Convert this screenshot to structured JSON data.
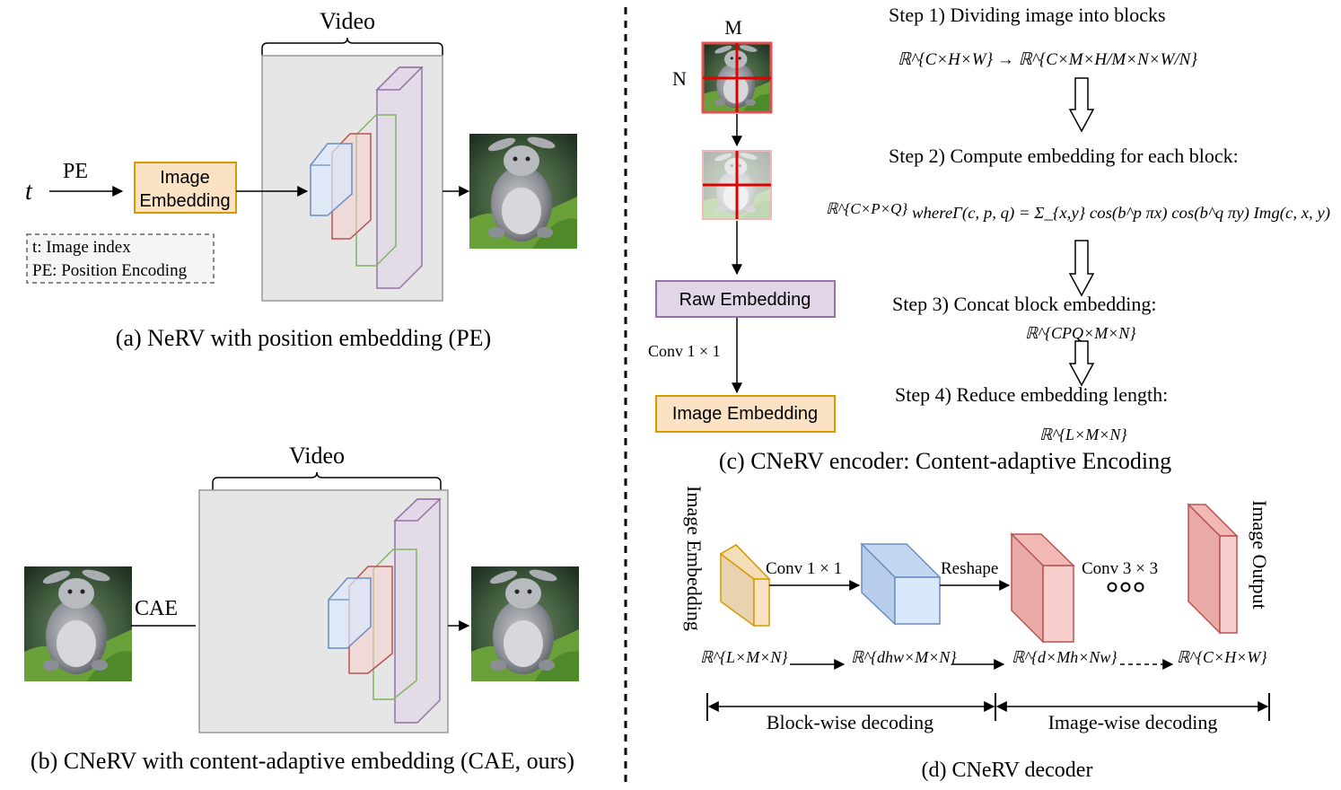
{
  "panel_a": {
    "video_label": "Video",
    "t_symbol": "t",
    "pe_label": "PE",
    "box_line1": "Image",
    "box_line2": "Embedding",
    "legend_line1": "t: Image index",
    "legend_line2": "PE: Position Encoding",
    "caption": "(a) NeRV with  position embedding (PE)"
  },
  "panel_b": {
    "video_label": "Video",
    "cae_label": "CAE",
    "caption": "(b) CNeRV with content-adaptive embedding (CAE, ours)"
  },
  "panel_c": {
    "m_label": "M",
    "n_label": "N",
    "raw_embedding": "Raw Embedding",
    "conv_label": "Conv 1 × 1",
    "image_embedding": "Image Embedding",
    "step1": "Step 1)  Dividing image into blocks",
    "step1_formula": "ℝ^{C×H×W} → ℝ^{C×M×H/M×N×W/N}",
    "step2": "Step 2)  Compute embedding for each block:",
    "step2_formula_left": "ℝ^{C×P×Q}",
    "step2_formula_right": "whereΓ(c, p, q) = Σ_{x,y} cos(b^p πx) cos(b^q πy) Img(c, x, y)",
    "step3": "Step 3)  Concat block embedding:",
    "step3_formula": "ℝ^{CPQ×M×N}",
    "step4": "Step 4)  Reduce embedding length:",
    "step4_formula": "ℝ^{L×M×N}",
    "caption": "(c) CNeRV encoder: Content-adaptive Encoding"
  },
  "panel_d": {
    "input_label": "Image Embedding",
    "output_label": "Image Output",
    "conv1_label": "Conv 1 × 1",
    "reshape_label": "Reshape",
    "conv3_label": "Conv 3 × 3",
    "dots": "ooo",
    "dim1": "ℝ^{L×M×N}",
    "dim2": "ℝ^{dhw×M×N}",
    "dim3": "ℝ^{d×Mh×Nw}",
    "dim4": "ℝ^{C×H×W}",
    "blockwise": "Block-wise decoding",
    "imagewise": "Image-wise decoding",
    "caption": "(d) CNeRV decoder"
  },
  "colors": {
    "orange_fill": "#fbe2c4",
    "orange_stroke": "#d79b00",
    "purple_fill": "#e1d5e7",
    "purple_stroke": "#9673a6",
    "blue_fill": "#dae8fc",
    "blue_stroke": "#6c8ebf",
    "red_fill": "#f8cecc",
    "red_stroke": "#b85450",
    "green_stroke": "#82b366",
    "gray_fill": "#e6e6e6"
  }
}
